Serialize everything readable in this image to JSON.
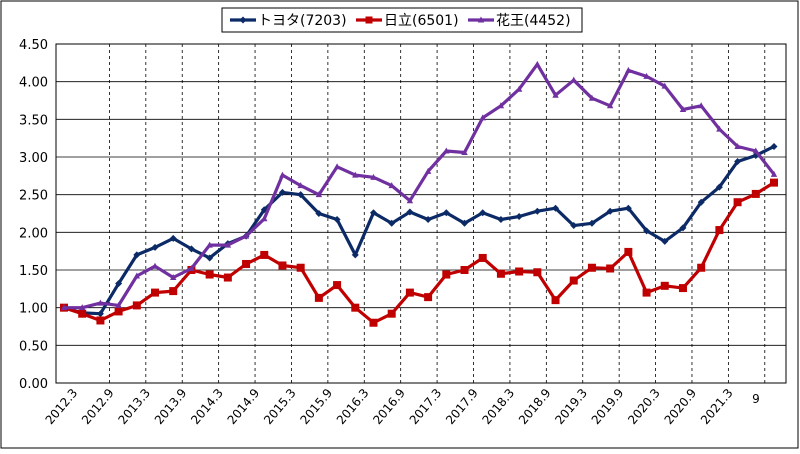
{
  "chart_data": {
    "type": "line",
    "ylim": [
      0,
      4.5
    ],
    "y_ticks": [
      "0.00",
      "0.50",
      "1.00",
      "1.50",
      "2.00",
      "2.50",
      "3.00",
      "3.50",
      "4.00",
      "4.50"
    ],
    "x_tick_labels": [
      "2012.3",
      "2012.9",
      "2013.3",
      "2013.9",
      "2014.3",
      "2014.9",
      "2015.3",
      "2015.9",
      "2016.3",
      "2016.9",
      "2017.3",
      "2017.9",
      "2018.3",
      "2018.9",
      "2019.3",
      "2019.9",
      "2020.3",
      "2020.9",
      "2021.3",
      "9"
    ],
    "grid": true,
    "legend_position": "top",
    "x": [
      "2012.3",
      "2012.6",
      "2012.9",
      "2012.12",
      "2013.3",
      "2013.6",
      "2013.9",
      "2013.12",
      "2014.3",
      "2014.6",
      "2014.9",
      "2014.12",
      "2015.3",
      "2015.6",
      "2015.9",
      "2015.12",
      "2016.3",
      "2016.6",
      "2016.9",
      "2016.12",
      "2017.3",
      "2017.6",
      "2017.9",
      "2017.12",
      "2018.3",
      "2018.6",
      "2018.9",
      "2018.12",
      "2019.3",
      "2019.6",
      "2019.9",
      "2019.12",
      "2020.3",
      "2020.6",
      "2020.9",
      "2020.12",
      "2021.3",
      "2021.6",
      "2021.9",
      "2021.12"
    ],
    "series": [
      {
        "name": "トヨタ(7203)",
        "color": "#0b2a66",
        "marker": "diamond",
        "values": [
          1.0,
          0.93,
          0.92,
          1.32,
          1.7,
          1.8,
          1.92,
          1.78,
          1.66,
          1.85,
          1.95,
          2.3,
          2.53,
          2.5,
          2.25,
          2.17,
          1.7,
          2.26,
          2.12,
          2.27,
          2.17,
          2.26,
          2.12,
          2.26,
          2.17,
          2.21,
          2.28,
          2.32,
          2.09,
          2.12,
          2.28,
          2.32,
          2.02,
          1.88,
          2.06,
          2.4,
          2.6,
          2.94,
          3.02,
          3.14
        ]
      },
      {
        "name": "日立(6501)",
        "color": "#c00000",
        "marker": "square",
        "values": [
          1.0,
          0.92,
          0.83,
          0.95,
          1.03,
          1.2,
          1.22,
          1.5,
          1.44,
          1.4,
          1.58,
          1.7,
          1.56,
          1.53,
          1.13,
          1.3,
          1.0,
          0.8,
          0.92,
          1.2,
          1.14,
          1.44,
          1.5,
          1.66,
          1.45,
          1.48,
          1.47,
          1.1,
          1.36,
          1.53,
          1.52,
          1.74,
          1.2,
          1.29,
          1.26,
          1.53,
          2.03,
          2.4,
          2.51,
          2.66
        ]
      },
      {
        "name": "花王(4452)",
        "color": "#7030a0",
        "marker": "triangle",
        "values": [
          1.0,
          1.0,
          1.06,
          1.03,
          1.42,
          1.55,
          1.4,
          1.52,
          1.83,
          1.83,
          1.95,
          2.18,
          2.76,
          2.62,
          2.5,
          2.87,
          2.76,
          2.73,
          2.62,
          2.42,
          2.81,
          3.08,
          3.06,
          3.52,
          3.68,
          3.9,
          4.23,
          3.82,
          4.02,
          3.78,
          3.68,
          4.15,
          4.07,
          3.94,
          3.63,
          3.68,
          3.37,
          3.14,
          3.08,
          2.77
        ]
      }
    ]
  }
}
